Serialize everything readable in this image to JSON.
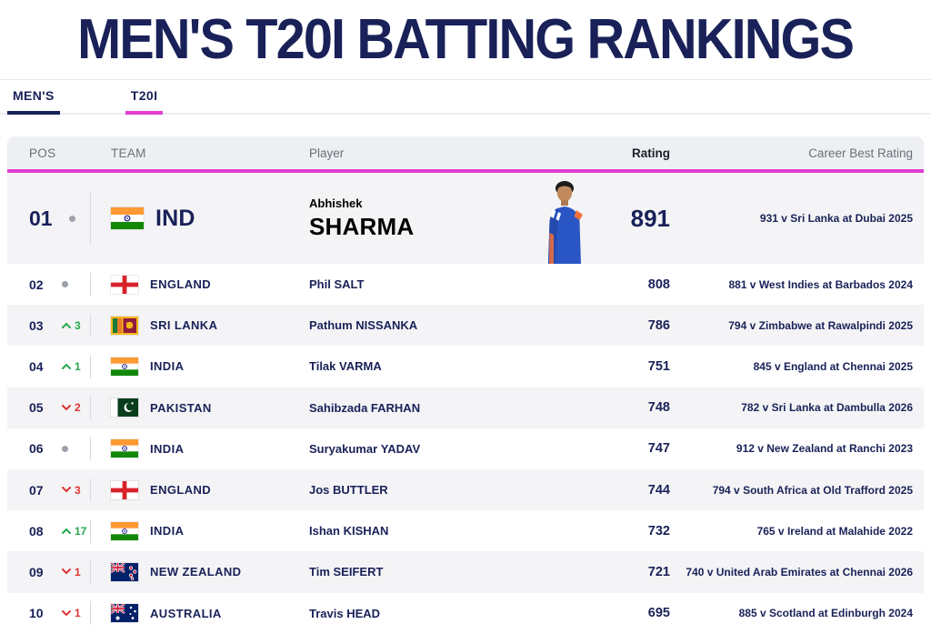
{
  "title": "MEN'S T20I BATTING RANKINGS",
  "tabs": [
    {
      "label": "MEN'S",
      "underline": "navy"
    },
    {
      "label": "T20I",
      "underline": "magenta"
    }
  ],
  "table": {
    "headers": {
      "pos": "POS",
      "team": "TEAM",
      "player": "Player",
      "rating": "Rating",
      "career_best": "Career Best Rating"
    },
    "rows": [
      {
        "pos": "01",
        "movement": {
          "dir": "none",
          "value": ""
        },
        "flag": "india",
        "team": "IND",
        "player_first": "Abhishek",
        "player_last": "SHARMA",
        "rating": "891",
        "career_best": "931 v Sri Lanka at Dubai 2025",
        "featured": true,
        "photo": "abhishek-sharma-portrait"
      },
      {
        "pos": "02",
        "movement": {
          "dir": "none",
          "value": ""
        },
        "flag": "england",
        "team": "ENGLAND",
        "player_first": "Phil",
        "player_last": "SALT",
        "rating": "808",
        "career_best": "881 v West Indies at Barbados 2024"
      },
      {
        "pos": "03",
        "movement": {
          "dir": "up",
          "value": "3"
        },
        "flag": "sri-lanka",
        "team": "SRI LANKA",
        "player_first": "Pathum",
        "player_last": "NISSANKA",
        "rating": "786",
        "career_best": "794 v Zimbabwe at Rawalpindi 2025"
      },
      {
        "pos": "04",
        "movement": {
          "dir": "up",
          "value": "1"
        },
        "flag": "india",
        "team": "INDIA",
        "player_first": "Tilak",
        "player_last": "VARMA",
        "rating": "751",
        "career_best": "845 v England at Chennai 2025"
      },
      {
        "pos": "05",
        "movement": {
          "dir": "down",
          "value": "2"
        },
        "flag": "pakistan",
        "team": "PAKISTAN",
        "player_first": "Sahibzada",
        "player_last": "FARHAN",
        "rating": "748",
        "career_best": "782 v Sri Lanka at Dambulla 2026"
      },
      {
        "pos": "06",
        "movement": {
          "dir": "none",
          "value": ""
        },
        "flag": "india",
        "team": "INDIA",
        "player_first": "Suryakumar",
        "player_last": "YADAV",
        "rating": "747",
        "career_best": "912 v New Zealand at Ranchi 2023"
      },
      {
        "pos": "07",
        "movement": {
          "dir": "down",
          "value": "3"
        },
        "flag": "england",
        "team": "ENGLAND",
        "player_first": "Jos",
        "player_last": "BUTTLER",
        "rating": "744",
        "career_best": "794 v South Africa at Old Trafford 2025"
      },
      {
        "pos": "08",
        "movement": {
          "dir": "up",
          "value": "17"
        },
        "flag": "india",
        "team": "INDIA",
        "player_first": "Ishan",
        "player_last": "KISHAN",
        "rating": "732",
        "career_best": "765 v Ireland at Malahide 2022"
      },
      {
        "pos": "09",
        "movement": {
          "dir": "down",
          "value": "1"
        },
        "flag": "new-zealand",
        "team": "NEW ZEALAND",
        "player_first": "Tim",
        "player_last": "SEIFERT",
        "rating": "721",
        "career_best": "740 v United Arab Emirates at Chennai 2026"
      },
      {
        "pos": "10",
        "movement": {
          "dir": "down",
          "value": "1"
        },
        "flag": "australia",
        "team": "AUSTRALIA",
        "player_first": "Travis",
        "player_last": "HEAD",
        "rating": "695",
        "career_best": "885 v Scotland at Edinburgh 2024"
      }
    ]
  },
  "colors": {
    "navy": "#192158",
    "magenta": "#e03ecf",
    "up_green": "#27a74d",
    "down_red": "#dd3333",
    "neutral_gray": "#9da2aa",
    "header_text": "#6b7078",
    "row_alt_bg": "#f4f4f6",
    "header_bg": "#edeff3"
  }
}
